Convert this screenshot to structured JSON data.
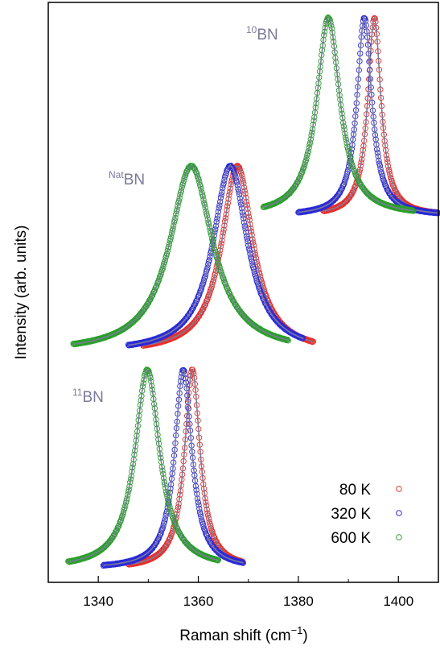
{
  "chart_data": {
    "type": "scatter",
    "xlabel_main": "Raman shift (cm",
    "xlabel_sup": "−1",
    "xlabel_end": ")",
    "ylabel": "Intensity (arb. units)",
    "xlim": [
      1330,
      1408
    ],
    "x_ticks": [
      1340,
      1360,
      1380,
      1400
    ],
    "y_ticks_shown": false,
    "fit_color": "#7a7a9a",
    "legend": {
      "position": "bottom-right",
      "entries": [
        {
          "label": "80 K",
          "color": "#e8302a"
        },
        {
          "label": "320 K",
          "color": "#2a2ad8"
        },
        {
          "label": "600 K",
          "color": "#2aa02a"
        }
      ]
    },
    "panels": [
      {
        "label_sup": "10",
        "label_base": "BN",
        "label_color": "#7a7a9a",
        "series": [
          {
            "name": "80 K",
            "x0": 1395.2,
            "hwhm": 1.6,
            "xmin": 1385,
            "xmax": 1408
          },
          {
            "name": "320 K",
            "x0": 1393.2,
            "hwhm": 1.8,
            "xmin": 1380,
            "xmax": 1408
          },
          {
            "name": "600 K",
            "x0": 1386.0,
            "hwhm": 2.8,
            "xmin": 1373,
            "xmax": 1403
          }
        ]
      },
      {
        "label_sup": "Nat",
        "label_base": "BN",
        "label_color": "#7a7a9a",
        "series": [
          {
            "name": "80 K",
            "x0": 1367.8,
            "hwhm": 3.8,
            "xmin": 1349,
            "xmax": 1383
          },
          {
            "name": "320 K",
            "x0": 1366.4,
            "hwhm": 4.2,
            "xmin": 1346,
            "xmax": 1381
          },
          {
            "name": "600 K",
            "x0": 1358.6,
            "hwhm": 5.2,
            "xmin": 1335,
            "xmax": 1378
          }
        ]
      },
      {
        "label_sup": "11",
        "label_base": "BN",
        "label_color": "#7a7a9a",
        "series": [
          {
            "name": "80 K",
            "x0": 1358.8,
            "hwhm": 1.9,
            "xmin": 1346,
            "xmax": 1369
          },
          {
            "name": "320 K",
            "x0": 1357.0,
            "hwhm": 2.1,
            "xmin": 1341,
            "xmax": 1369
          },
          {
            "name": "600 K",
            "x0": 1349.8,
            "hwhm": 3.0,
            "xmin": 1334,
            "xmax": 1364
          }
        ]
      }
    ]
  }
}
